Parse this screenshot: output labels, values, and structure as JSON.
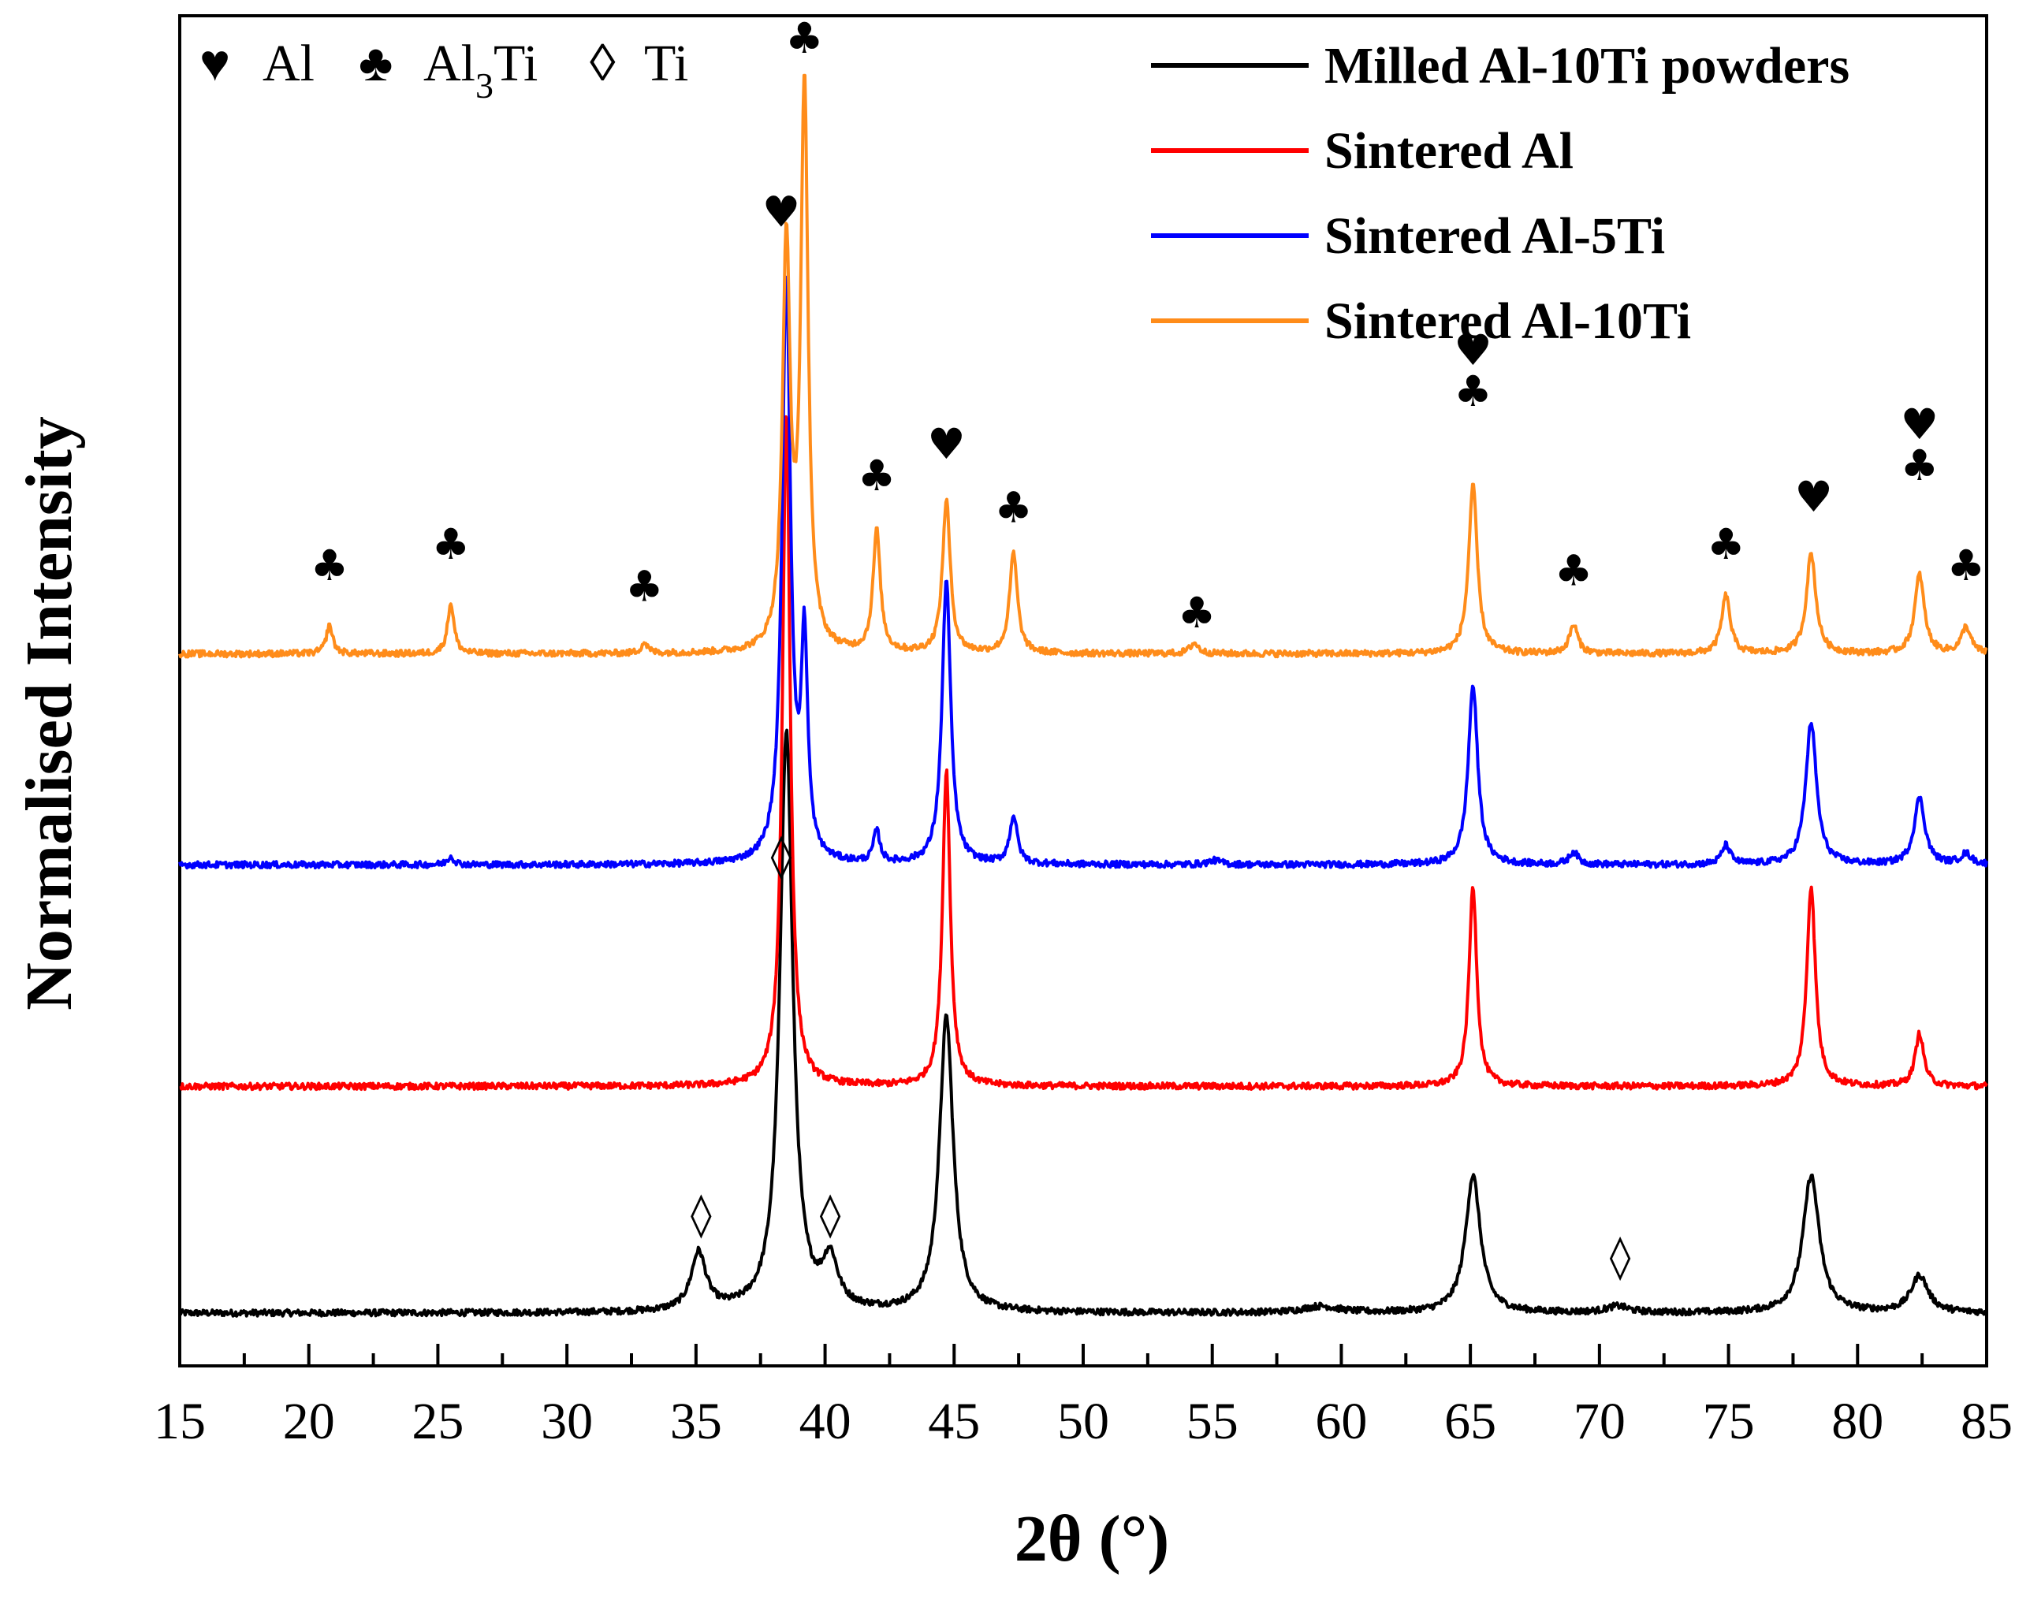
{
  "chart_data": {
    "type": "line",
    "title": "",
    "xlabel": "2θ (°)",
    "ylabel": "Normalised Intensity",
    "xlim": [
      15,
      85
    ],
    "x_ticks": [
      15,
      20,
      25,
      30,
      35,
      40,
      45,
      50,
      55,
      60,
      65,
      70,
      75,
      80,
      85
    ],
    "y_ticks": [],
    "y_units": "normalised (stacked, arbitrary units, offset per series)",
    "legend_position": "top-right",
    "phase_key": [
      {
        "symbol": "♥",
        "symbol_name": "heart-icon",
        "label": "Al"
      },
      {
        "symbol": "♣",
        "symbol_name": "club-icon",
        "label_main": "Al",
        "label_sub": "3",
        "label_tail": "Ti"
      },
      {
        "symbol": "◊",
        "symbol_name": "diamond-icon",
        "label": "Ti"
      }
    ],
    "series": [
      {
        "name": "Milled Al-10Ti powders",
        "color": "#000000",
        "baseline": 0.05,
        "peaks": [
          {
            "x": 35.1,
            "h": 0.055,
            "w": 0.35
          },
          {
            "x": 38.5,
            "h": 0.55,
            "w": 0.3
          },
          {
            "x": 40.2,
            "h": 0.045,
            "w": 0.35
          },
          {
            "x": 44.7,
            "h": 0.28,
            "w": 0.32
          },
          {
            "x": 59.2,
            "h": 0.006,
            "w": 0.8
          },
          {
            "x": 65.1,
            "h": 0.13,
            "w": 0.35
          },
          {
            "x": 70.7,
            "h": 0.006,
            "w": 0.5
          },
          {
            "x": 78.2,
            "h": 0.13,
            "w": 0.38
          },
          {
            "x": 82.4,
            "h": 0.035,
            "w": 0.4
          }
        ]
      },
      {
        "name": "Sintered Al",
        "color": "#ff0000",
        "baseline": 0.265,
        "peaks": [
          {
            "x": 38.5,
            "h": 0.64,
            "w": 0.18
          },
          {
            "x": 44.7,
            "h": 0.3,
            "w": 0.18
          },
          {
            "x": 65.1,
            "h": 0.19,
            "w": 0.18
          },
          {
            "x": 78.2,
            "h": 0.19,
            "w": 0.2
          },
          {
            "x": 82.4,
            "h": 0.05,
            "w": 0.2
          }
        ]
      },
      {
        "name": "Sintered Al-5Ti",
        "color": "#0000ff",
        "baseline": 0.475,
        "peaks": [
          {
            "x": 25.5,
            "h": 0.008,
            "w": 0.15
          },
          {
            "x": 38.5,
            "h": 0.55,
            "w": 0.2
          },
          {
            "x": 39.2,
            "h": 0.2,
            "w": 0.15
          },
          {
            "x": 42.0,
            "h": 0.03,
            "w": 0.15
          },
          {
            "x": 44.7,
            "h": 0.27,
            "w": 0.2
          },
          {
            "x": 47.3,
            "h": 0.045,
            "w": 0.18
          },
          {
            "x": 55.1,
            "h": 0.004,
            "w": 0.3
          },
          {
            "x": 65.1,
            "h": 0.17,
            "w": 0.22
          },
          {
            "x": 69.0,
            "h": 0.012,
            "w": 0.2
          },
          {
            "x": 74.9,
            "h": 0.018,
            "w": 0.2
          },
          {
            "x": 78.2,
            "h": 0.135,
            "w": 0.25
          },
          {
            "x": 82.4,
            "h": 0.063,
            "w": 0.25
          },
          {
            "x": 84.2,
            "h": 0.01,
            "w": 0.25
          }
        ]
      },
      {
        "name": "Sintered Al-10Ti",
        "color": "#ff8c1a",
        "baseline": 0.675,
        "peaks": [
          {
            "x": 20.8,
            "h": 0.027,
            "w": 0.15
          },
          {
            "x": 25.5,
            "h": 0.048,
            "w": 0.15
          },
          {
            "x": 33.0,
            "h": 0.01,
            "w": 0.15
          },
          {
            "x": 38.5,
            "h": 0.38,
            "w": 0.18
          },
          {
            "x": 39.2,
            "h": 0.53,
            "w": 0.17
          },
          {
            "x": 42.0,
            "h": 0.115,
            "w": 0.17
          },
          {
            "x": 44.7,
            "h": 0.145,
            "w": 0.18
          },
          {
            "x": 47.3,
            "h": 0.095,
            "w": 0.18
          },
          {
            "x": 54.3,
            "h": 0.01,
            "w": 0.2
          },
          {
            "x": 65.1,
            "h": 0.16,
            "w": 0.2
          },
          {
            "x": 69.0,
            "h": 0.027,
            "w": 0.2
          },
          {
            "x": 74.9,
            "h": 0.055,
            "w": 0.2
          },
          {
            "x": 78.2,
            "h": 0.095,
            "w": 0.22
          },
          {
            "x": 82.4,
            "h": 0.075,
            "w": 0.22
          },
          {
            "x": 84.2,
            "h": 0.025,
            "w": 0.22
          }
        ]
      }
    ],
    "peak_markers": [
      {
        "x": 20.8,
        "y": 0.745,
        "symbols": [
          "♣"
        ]
      },
      {
        "x": 25.5,
        "y": 0.765,
        "symbols": [
          "♣"
        ]
      },
      {
        "x": 33.0,
        "y": 0.725,
        "symbols": [
          "♣"
        ]
      },
      {
        "x": 38.3,
        "y": 1.08,
        "symbols": [
          "♥"
        ]
      },
      {
        "x": 39.2,
        "y": 1.245,
        "symbols": [
          "♣"
        ]
      },
      {
        "x": 42.0,
        "y": 0.83,
        "symbols": [
          "♣"
        ]
      },
      {
        "x": 44.7,
        "y": 0.86,
        "symbols": [
          "♥"
        ]
      },
      {
        "x": 47.3,
        "y": 0.8,
        "symbols": [
          "♣"
        ]
      },
      {
        "x": 54.4,
        "y": 0.7,
        "symbols": [
          "♣"
        ]
      },
      {
        "x": 65.1,
        "y": 0.91,
        "symbols": [
          "♥",
          "♣"
        ]
      },
      {
        "x": 69.0,
        "y": 0.74,
        "symbols": [
          "♣"
        ]
      },
      {
        "x": 74.9,
        "y": 0.765,
        "symbols": [
          "♣"
        ]
      },
      {
        "x": 78.3,
        "y": 0.81,
        "symbols": [
          "♥"
        ]
      },
      {
        "x": 82.4,
        "y": 0.84,
        "symbols": [
          "♥",
          "♣"
        ]
      },
      {
        "x": 84.2,
        "y": 0.745,
        "symbols": [
          "♣"
        ]
      },
      {
        "x": 38.3,
        "y": 0.47,
        "symbols": [
          "◊"
        ]
      },
      {
        "x": 35.2,
        "y": 0.13,
        "symbols": [
          "◊"
        ]
      },
      {
        "x": 40.2,
        "y": 0.13,
        "symbols": [
          "◊"
        ]
      },
      {
        "x": 70.8,
        "y": 0.09,
        "symbols": [
          "◊"
        ]
      }
    ]
  }
}
